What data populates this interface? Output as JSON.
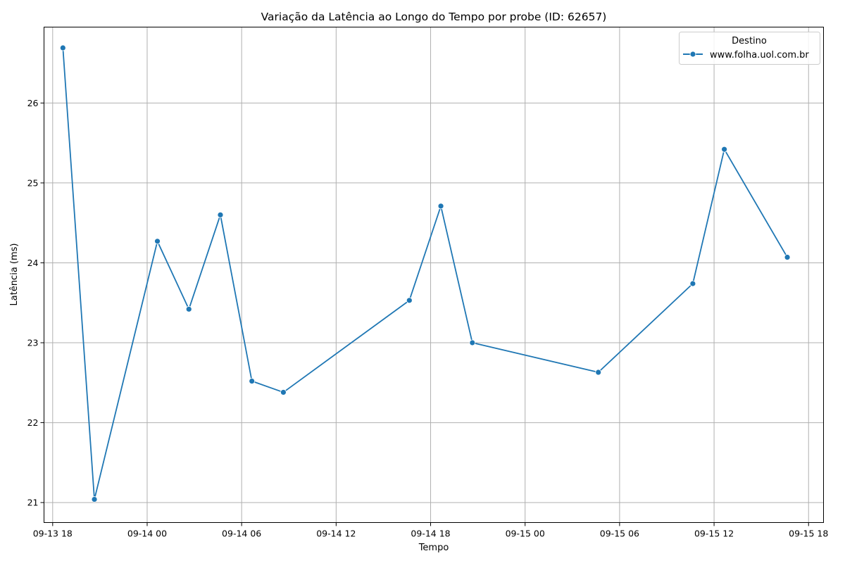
{
  "chart_data": {
    "type": "line",
    "title": "Variação da Latência ao Longo do Tempo por probe (ID: 62657)",
    "xlabel": "Tempo",
    "ylabel": "Latência (ms)",
    "x_tick_labels": [
      "09-13 18",
      "09-14 00",
      "09-14 06",
      "09-14 12",
      "09-14 18",
      "09-15 00",
      "09-15 06",
      "09-15 12",
      "09-15 18"
    ],
    "x_ticks": [
      "2024-09-13T18:00",
      "2024-09-14T00:00",
      "2024-09-14T06:00",
      "2024-09-14T12:00",
      "2024-09-14T18:00",
      "2024-09-15T00:00",
      "2024-09-15T06:00",
      "2024-09-15T12:00",
      "2024-09-15T18:00"
    ],
    "xlim": [
      "2024-09-13T17:27",
      "2024-09-15T18:57"
    ],
    "y_ticks": [
      21,
      22,
      23,
      24,
      25,
      26
    ],
    "ylim": [
      20.75,
      26.95
    ],
    "grid": true,
    "legend": {
      "title": "Destino",
      "placement": "top-right"
    },
    "series": [
      {
        "name": "www.folha.uol.com.br",
        "color": "#1f77b4",
        "marker": "circle",
        "x": [
          "2024-09-13T18:39",
          "2024-09-13T20:39",
          "2024-09-14T00:39",
          "2024-09-14T02:39",
          "2024-09-14T04:39",
          "2024-09-14T06:39",
          "2024-09-14T08:39",
          "2024-09-14T16:39",
          "2024-09-14T18:39",
          "2024-09-14T20:39",
          "2024-09-15T04:39",
          "2024-09-15T10:39",
          "2024-09-15T12:39",
          "2024-09-15T16:39"
        ],
        "y": [
          26.69,
          21.04,
          24.27,
          23.42,
          24.6,
          22.52,
          22.38,
          23.53,
          24.71,
          23.0,
          22.63,
          23.74,
          25.42,
          24.07
        ]
      }
    ]
  }
}
